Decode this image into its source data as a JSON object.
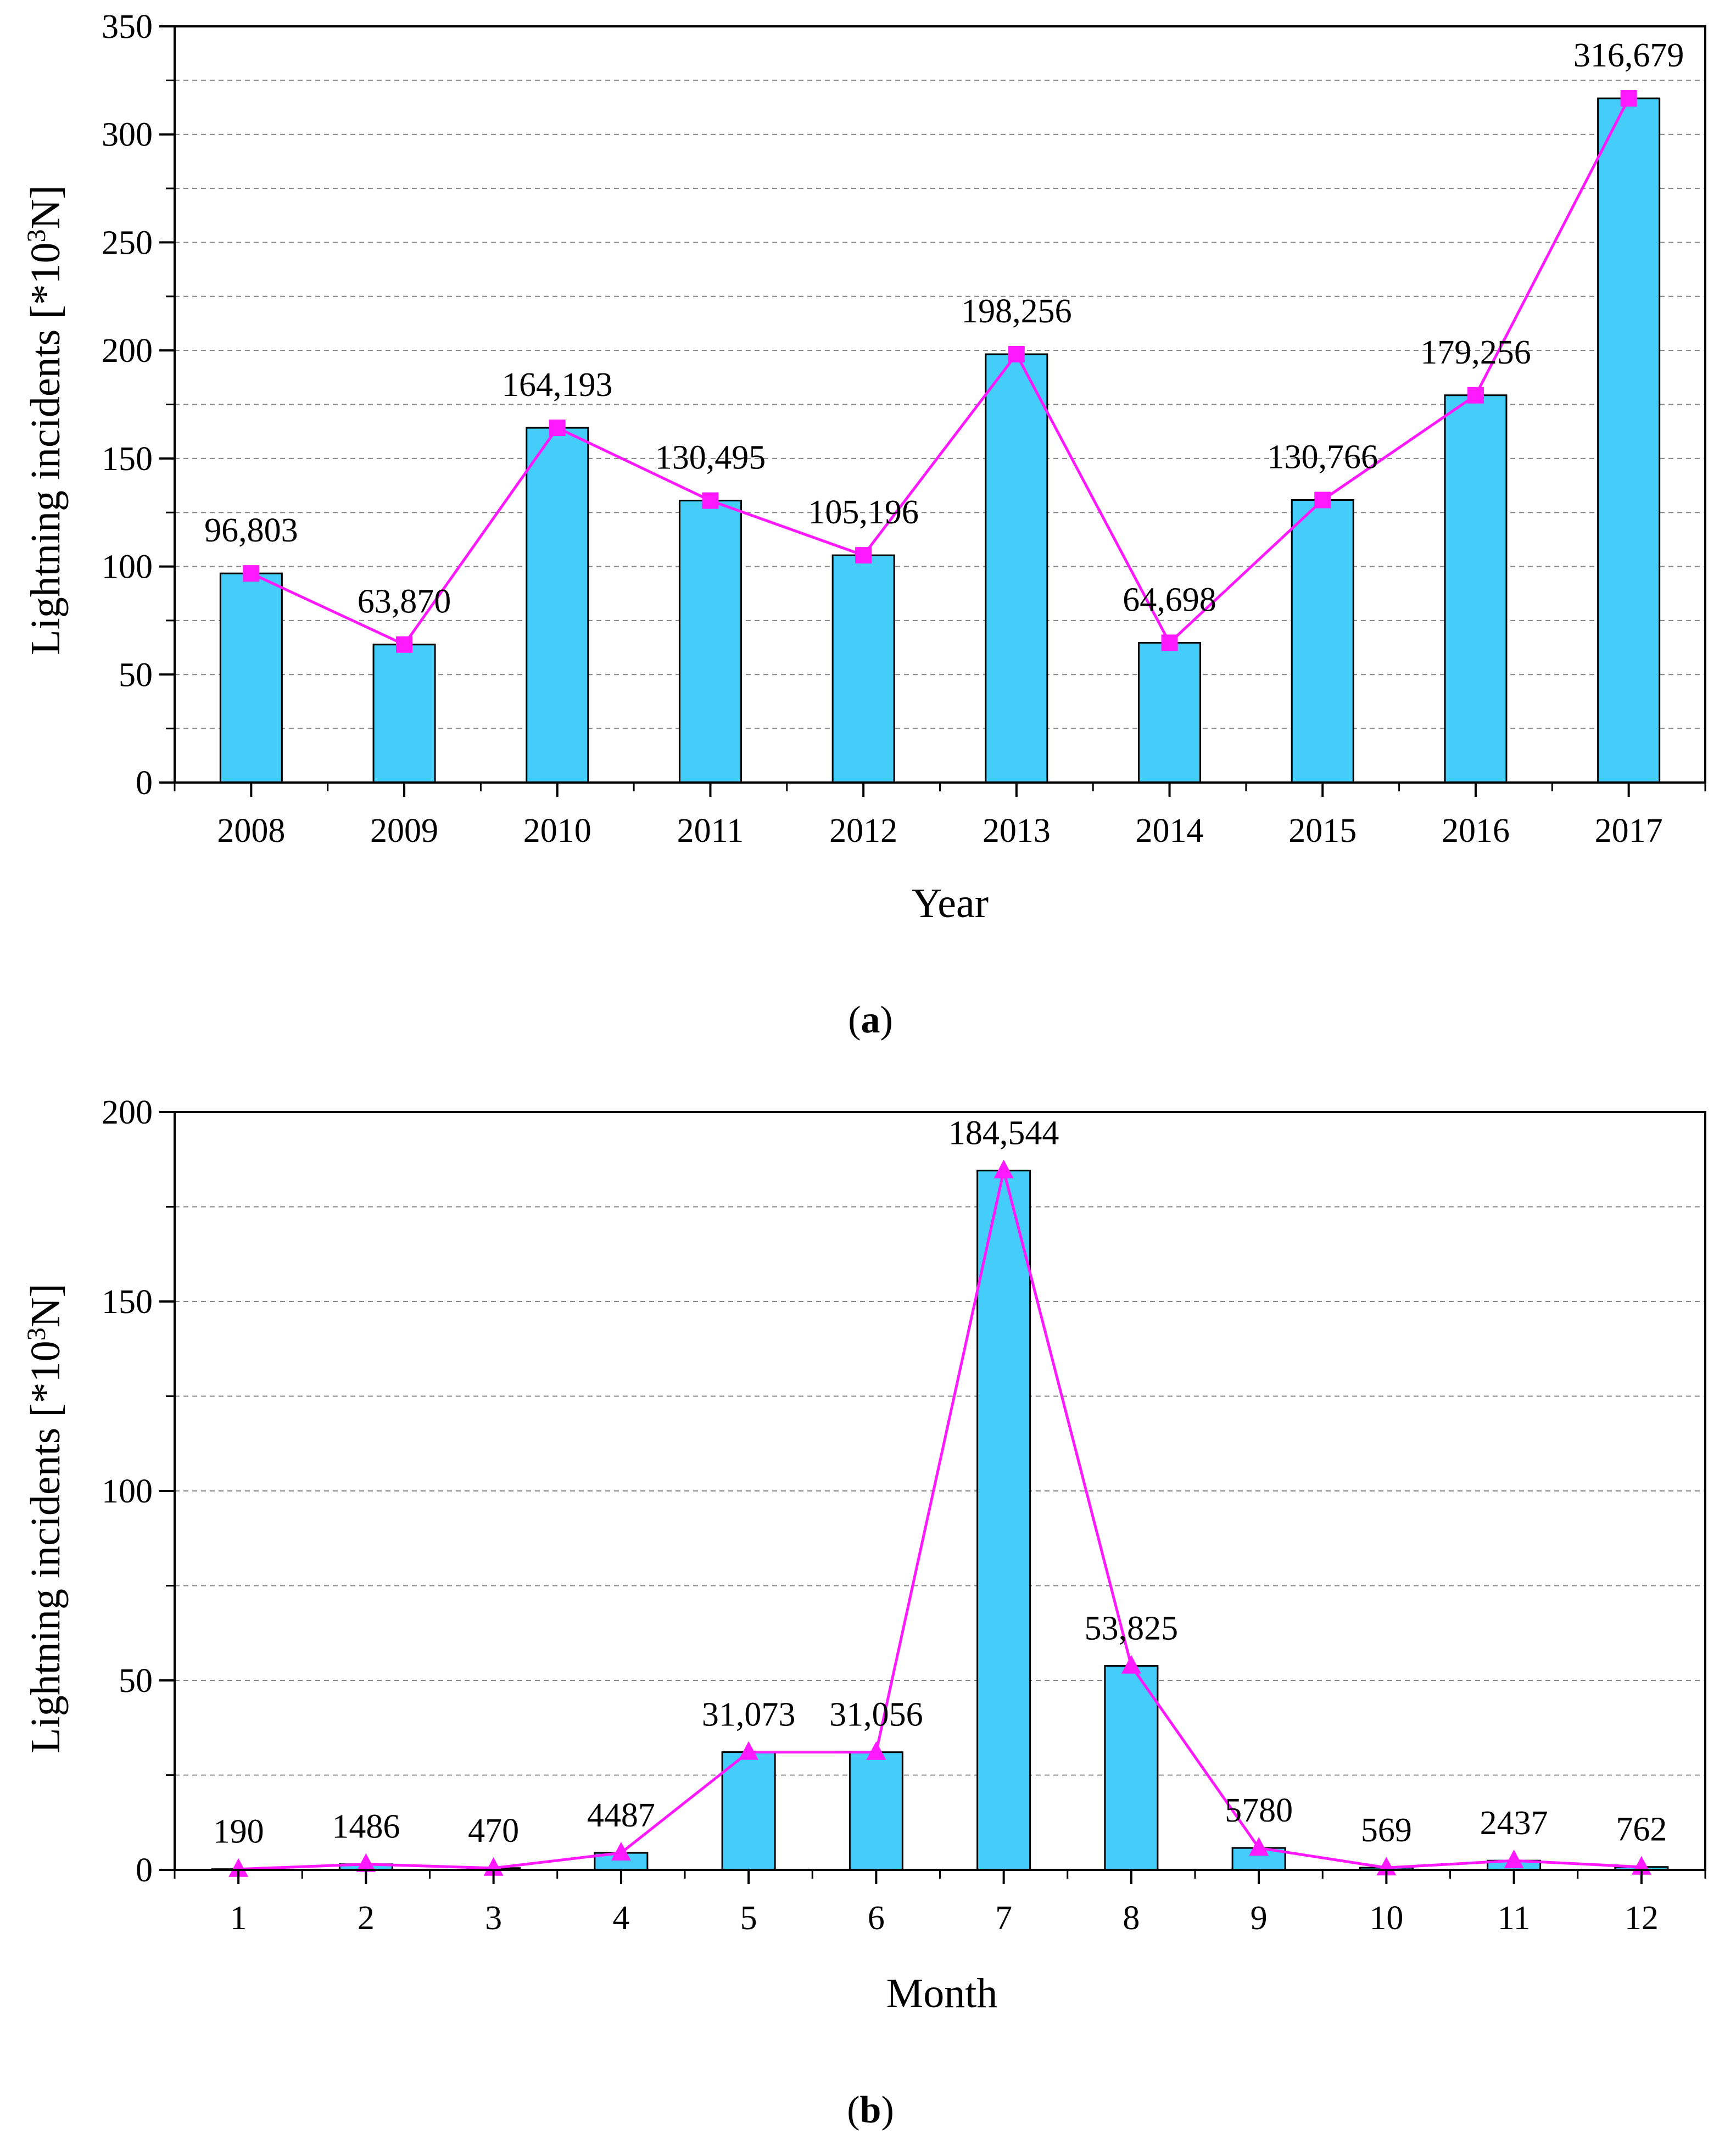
{
  "chart_data": [
    {
      "type": "bar",
      "overlay": "line",
      "caption_letter": "a",
      "categories": [
        "2008",
        "2009",
        "2010",
        "2011",
        "2012",
        "2013",
        "2014",
        "2015",
        "2016",
        "2017"
      ],
      "values": [
        96.803,
        63.87,
        164.193,
        130.495,
        105.196,
        198.256,
        64.698,
        130.766,
        179.256,
        316.679
      ],
      "data_labels": [
        "96,803",
        "63,870",
        "164,193",
        "130,495",
        "105,196",
        "198,256",
        "64,698",
        "130,766",
        "179,256",
        "316,679"
      ],
      "xlabel": "Year",
      "ylabel_main": "Lightning incidents [*10",
      "ylabel_sup": "3",
      "ylabel_end": "N]",
      "ylim": [
        0,
        350
      ],
      "yticks": [
        0,
        50,
        100,
        150,
        200,
        250,
        300,
        350
      ],
      "grid": true,
      "marker": "square",
      "bar_color": "#45cdf9",
      "line_color": "#ff19ff"
    },
    {
      "type": "bar",
      "overlay": "line",
      "caption_letter": "b",
      "categories": [
        "1",
        "2",
        "3",
        "4",
        "5",
        "6",
        "7",
        "8",
        "9",
        "10",
        "11",
        "12"
      ],
      "values": [
        0.19,
        1.486,
        0.47,
        4.487,
        31.073,
        31.056,
        184.544,
        53.825,
        5.78,
        0.569,
        2.437,
        0.762
      ],
      "data_labels": [
        "190",
        "1486",
        "470",
        "4487",
        "31,073",
        "31,056",
        "184,544",
        "53,825",
        "5780",
        "569",
        "2437",
        "762"
      ],
      "xlabel": "Month",
      "ylabel_main": "Lightning incidents [*10",
      "ylabel_sup": "3",
      "ylabel_end": "N]",
      "ylim": [
        0,
        200
      ],
      "yticks": [
        0,
        50,
        100,
        150,
        200
      ],
      "grid": true,
      "marker": "triangle",
      "bar_color": "#45cdf9",
      "line_color": "#ff19ff"
    }
  ]
}
